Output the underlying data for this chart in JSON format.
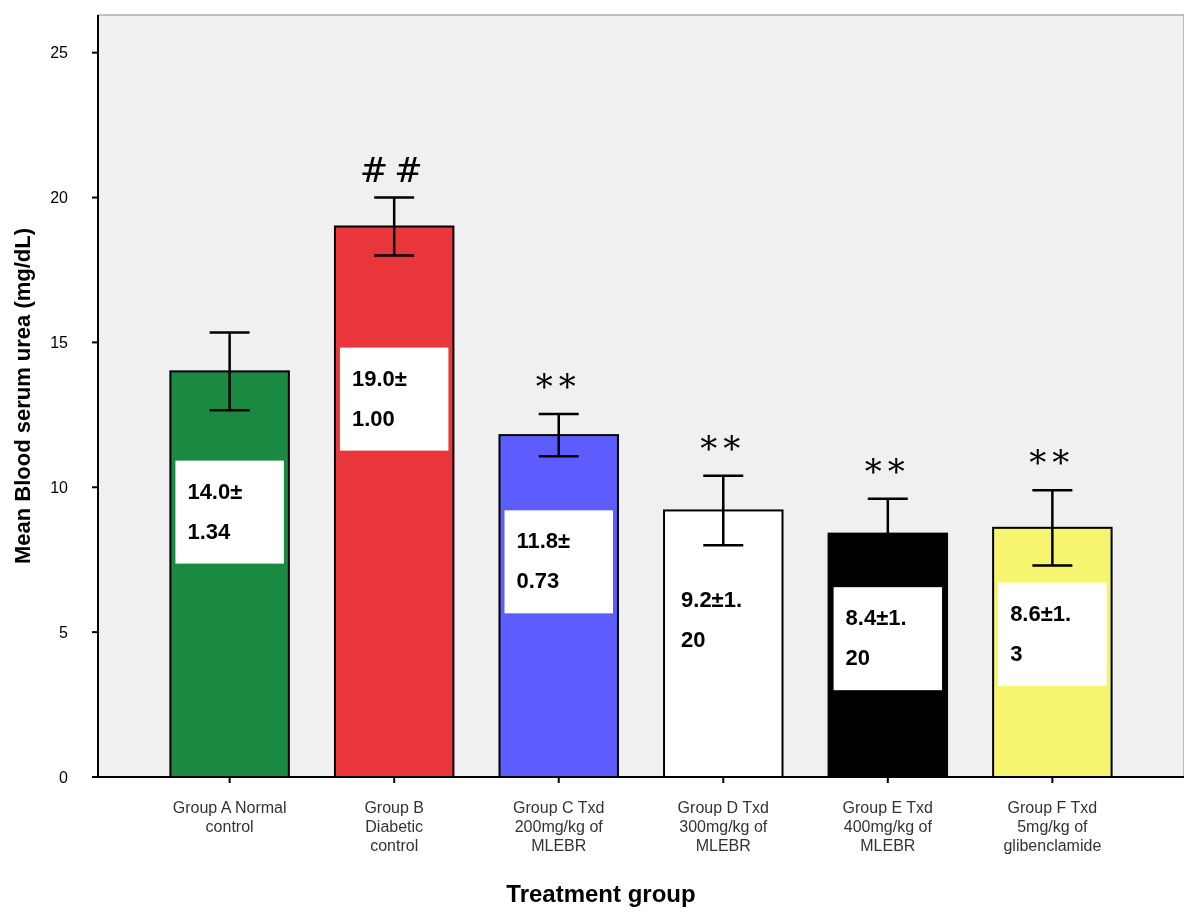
{
  "chart_data": {
    "type": "bar",
    "xlabel": "Treatment group",
    "ylabel": "Mean Blood serum urea (mg/dL)",
    "categories": [
      "Group A Normal control",
      "Group B Diabetic control",
      "Group C Txd 200mg/kg of MLEBR",
      "Group D Txd 300mg/kg of MLEBR",
      "Group E Txd 400mg/kg of MLEBR",
      "Group F Txd 5mg/kg of glibenclamide"
    ],
    "values": [
      14.0,
      19.0,
      11.8,
      9.2,
      8.4,
      8.6
    ],
    "errors": [
      1.34,
      1.0,
      0.73,
      1.2,
      1.2,
      1.3
    ],
    "colors": [
      "#1a8a42",
      "#e8363a",
      "#5c5cff",
      "#ffffff",
      "#000000",
      "#f7f570"
    ],
    "value_labels": [
      "14.0±1.34",
      "19.0±1.00",
      "11.8±0.73",
      "9.2±1.20",
      "8.4±1.20",
      "8.6±1.3"
    ],
    "ylim": [
      0,
      26.3
    ],
    "yticks": [
      0,
      5,
      10,
      15,
      20,
      25
    ],
    "annotations": [
      {
        "text": "##",
        "x": "Group B Diabetic control",
        "y": 19.0
      },
      {
        "text": "**",
        "x": "Group C Txd 200mg/kg of MLEBR",
        "y": 11.8
      },
      {
        "text": "**",
        "x": "Group D Txd 300mg/kg of MLEBR",
        "y": 9.2
      },
      {
        "text": "**",
        "x": "Group E Txd 400mg/kg of MLEBR",
        "y": 8.4
      },
      {
        "text": "**",
        "x": "Group F Txd 5mg/kg of glibenclamide",
        "y": 8.6
      }
    ]
  }
}
